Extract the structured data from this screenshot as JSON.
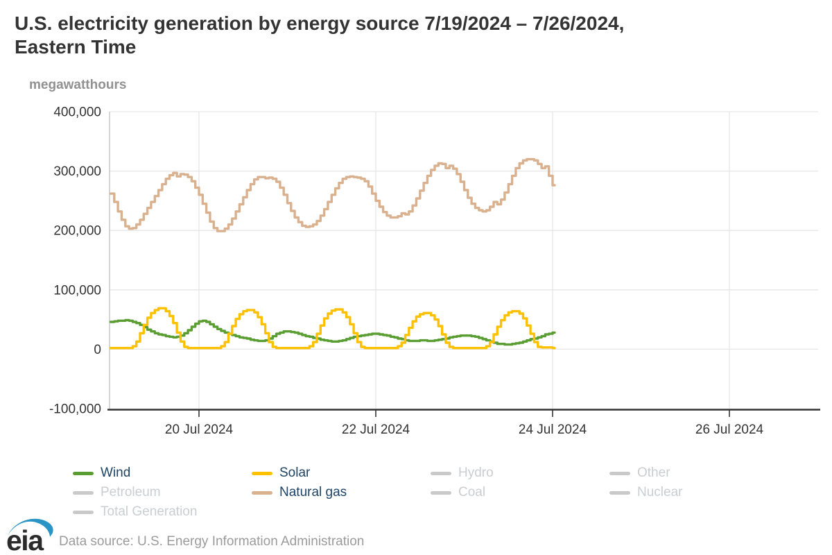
{
  "header": {
    "title_line1": "U.S. electricity generation by energy source 7/19/2024 – 7/26/2024,",
    "title_line2": "Eastern Time",
    "title_full": "U.S. electricity generation by energy source 7/19/2024 – 7/26/2024, Eastern Time"
  },
  "footer": {
    "logo_text": "eia",
    "data_source": "Data source: U.S. Energy Information Administration"
  },
  "colors": {
    "wind": "#5a9e33",
    "solar": "#fdc101",
    "natural_gas": "#d9b18f",
    "inactive_swatch": "#c9c9c9",
    "legend_active_text": "#1d4365",
    "legend_inactive_text": "#c9ced2",
    "title_text": "#333333",
    "axis_text": "#333333",
    "muted_text": "#9b9b9b",
    "gridline": "#e6e6e6",
    "spine": "#c9c9c9",
    "axis_line": "#333333",
    "logo_blue": "#2a95c5",
    "logo_text": "#2b2b2b"
  },
  "legend": {
    "items": [
      {
        "label": "Wind",
        "color": "#5a9e33",
        "active": true
      },
      {
        "label": "Solar",
        "color": "#fdc101",
        "active": true
      },
      {
        "label": "Hydro",
        "color": "#c9c9c9",
        "active": false
      },
      {
        "label": "Other",
        "color": "#c9c9c9",
        "active": false
      },
      {
        "label": "Petroleum",
        "color": "#c9c9c9",
        "active": false
      },
      {
        "label": "Natural gas",
        "color": "#d9b18f",
        "active": true
      },
      {
        "label": "Coal",
        "color": "#c9c9c9",
        "active": false
      },
      {
        "label": "Nuclear",
        "color": "#c9c9c9",
        "active": false
      },
      {
        "label": "Total Generation",
        "color": "#c9c9c9",
        "active": false
      }
    ]
  },
  "chart_data": {
    "type": "line",
    "step": true,
    "title": "U.S. electricity generation by energy source 7/19/2024 – 7/26/2024, Eastern Time",
    "xlabel": "",
    "ylabel": "megawatthours",
    "unit": "megawatthours",
    "x_unit": "hours since 2024-07-19 00:00 Eastern Time",
    "x_range_hours": [
      0,
      192
    ],
    "ylim": [
      -100000,
      400000
    ],
    "grid": true,
    "legend_position": "bottom",
    "y_ticks": [
      {
        "value": -100000,
        "label": "-100,000"
      },
      {
        "value": 0,
        "label": "0"
      },
      {
        "value": 100000,
        "label": "100,000"
      },
      {
        "value": 200000,
        "label": "200,000"
      },
      {
        "value": 300000,
        "label": "300,000"
      },
      {
        "value": 400000,
        "label": "400,000"
      }
    ],
    "x_ticks": [
      {
        "hour": 24,
        "label": "20 Jul 2024"
      },
      {
        "hour": 72,
        "label": "22 Jul 2024"
      },
      {
        "hour": 120,
        "label": "24 Jul 2024"
      },
      {
        "hour": 168,
        "label": "26 Jul 2024"
      }
    ],
    "series": [
      {
        "name": "Wind",
        "color": "#5a9e33",
        "values_mwh": [
          46000,
          47000,
          48000,
          48000,
          49000,
          48000,
          46000,
          44000,
          41000,
          37000,
          33000,
          30000,
          27000,
          25000,
          24000,
          22000,
          21000,
          20000,
          21000,
          23000,
          27000,
          32000,
          38000,
          43000,
          47000,
          48000,
          46000,
          42000,
          38000,
          34000,
          31000,
          28000,
          26000,
          24000,
          22000,
          20000,
          19000,
          18000,
          16000,
          15000,
          14000,
          14000,
          15000,
          18000,
          22000,
          26000,
          28000,
          30000,
          30000,
          29000,
          28000,
          26000,
          24000,
          22000,
          21000,
          19000,
          18000,
          16000,
          15000,
          14000,
          13000,
          13000,
          14000,
          15000,
          17000,
          19000,
          21000,
          22000,
          23000,
          24000,
          25000,
          26000,
          26000,
          25000,
          24000,
          23000,
          21000,
          20000,
          18000,
          17000,
          15000,
          14000,
          14000,
          14000,
          15000,
          15000,
          14000,
          14000,
          15000,
          16000,
          17000,
          18000,
          20000,
          21000,
          22000,
          23000,
          23000,
          23000,
          22000,
          21000,
          19000,
          17000,
          15000,
          13000,
          11000,
          9000,
          9000,
          8000,
          8000,
          9000,
          10000,
          11000,
          13000,
          15000,
          17000,
          18000,
          20000,
          22000,
          25000,
          26000,
          28000
        ]
      },
      {
        "name": "Solar",
        "color": "#fdc101",
        "values_mwh": [
          2000,
          2000,
          2000,
          2000,
          2000,
          2000,
          5000,
          13000,
          27000,
          41000,
          53000,
          61000,
          66000,
          69000,
          69000,
          64000,
          56000,
          44000,
          28000,
          13000,
          4000,
          2000,
          2000,
          2000,
          2000,
          2000,
          2000,
          2000,
          2000,
          2000,
          5000,
          12000,
          26000,
          39000,
          51000,
          59000,
          64000,
          66000,
          66000,
          62000,
          54000,
          42000,
          27000,
          12000,
          4000,
          2000,
          2000,
          2000,
          2000,
          2000,
          2000,
          2000,
          2000,
          2000,
          5000,
          12000,
          26000,
          40000,
          52000,
          60000,
          65000,
          67000,
          67000,
          62000,
          54000,
          42000,
          27000,
          12000,
          4000,
          2000,
          2000,
          2000,
          2000,
          2000,
          2000,
          2000,
          2000,
          2000,
          5000,
          11000,
          24000,
          36000,
          47000,
          55000,
          59000,
          61000,
          61000,
          57000,
          50000,
          39000,
          25000,
          11000,
          4000,
          2000,
          2000,
          2000,
          2000,
          2000,
          2000,
          2000,
          2000,
          2000,
          5000,
          12000,
          25000,
          38000,
          49000,
          57000,
          62000,
          64000,
          64000,
          60000,
          52000,
          40000,
          26000,
          12000,
          4000,
          3000,
          3000,
          3000,
          2000
        ]
      },
      {
        "name": "Natural gas",
        "color": "#d9b18f",
        "values_mwh": [
          262000,
          248000,
          232000,
          218000,
          207000,
          203000,
          204000,
          210000,
          218000,
          228000,
          238000,
          248000,
          258000,
          268000,
          278000,
          287000,
          293000,
          297000,
          291000,
          295000,
          294000,
          290000,
          283000,
          272000,
          260000,
          245000,
          230000,
          215000,
          204000,
          199000,
          199000,
          203000,
          210000,
          220000,
          232000,
          244000,
          256000,
          268000,
          278000,
          286000,
          290000,
          290000,
          288000,
          289000,
          287000,
          282000,
          272000,
          260000,
          246000,
          233000,
          222000,
          214000,
          208000,
          206000,
          207000,
          210000,
          216000,
          225000,
          236000,
          248000,
          260000,
          271000,
          280000,
          287000,
          290000,
          291000,
          290000,
          289000,
          287000,
          283000,
          274000,
          262000,
          250000,
          240000,
          231000,
          225000,
          222000,
          222000,
          224000,
          229000,
          227000,
          232000,
          242000,
          254000,
          267000,
          280000,
          292000,
          302000,
          309000,
          313000,
          312000,
          305000,
          309000,
          304000,
          295000,
          282000,
          268000,
          255000,
          245000,
          238000,
          234000,
          232000,
          234000,
          240000,
          248000,
          244000,
          252000,
          264000,
          278000,
          292000,
          305000,
          313000,
          318000,
          320000,
          320000,
          318000,
          312000,
          305000,
          308000,
          292000,
          276000
        ]
      }
    ]
  }
}
